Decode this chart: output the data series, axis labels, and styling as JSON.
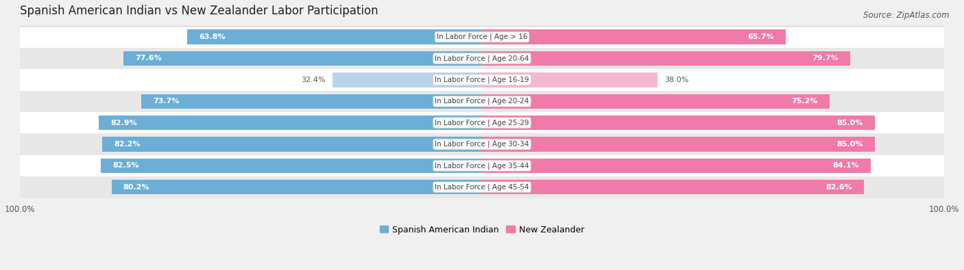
{
  "title": "Spanish American Indian vs New Zealander Labor Participation",
  "source": "Source: ZipAtlas.com",
  "categories": [
    "In Labor Force | Age > 16",
    "In Labor Force | Age 20-64",
    "In Labor Force | Age 16-19",
    "In Labor Force | Age 20-24",
    "In Labor Force | Age 25-29",
    "In Labor Force | Age 30-34",
    "In Labor Force | Age 35-44",
    "In Labor Force | Age 45-54"
  ],
  "spanish_values": [
    63.8,
    77.6,
    32.4,
    73.7,
    82.9,
    82.2,
    82.5,
    80.2
  ],
  "nz_values": [
    65.7,
    79.7,
    38.0,
    75.2,
    85.0,
    85.0,
    84.1,
    82.6
  ],
  "spanish_color": "#6baed6",
  "nz_color": "#f07aaa",
  "spanish_color_light": "#b8d4ea",
  "nz_color_light": "#f5b8d0",
  "bg_color": "#f0f0f0",
  "row_bg_even": "#ffffff",
  "row_bg_odd": "#e8e8e8",
  "bar_height": 0.68,
  "max_val": 100.0,
  "legend_label_spanish": "Spanish American Indian",
  "legend_label_nz": "New Zealander",
  "title_fontsize": 12,
  "source_fontsize": 8.5,
  "value_fontsize": 8,
  "label_fontsize": 7.5,
  "legend_fontsize": 9
}
